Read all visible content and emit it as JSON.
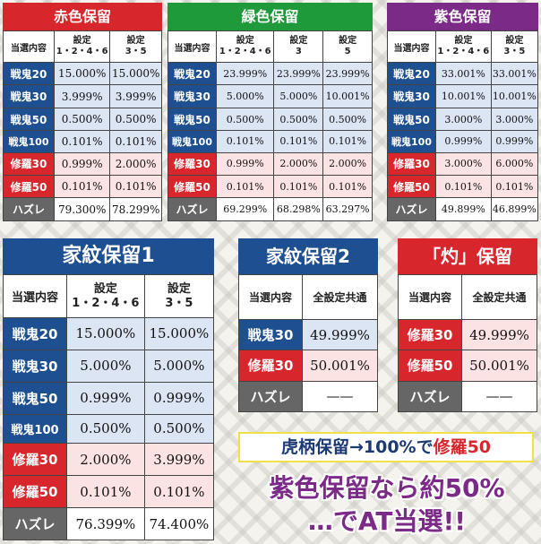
{
  "colors": {
    "red": "#d7272c",
    "green": "#1e9a3b",
    "purple": "#7b2a88",
    "navy": "#1d4f91",
    "gray": "#666666",
    "pinkbg": "#fbe3e3",
    "bluebg": "#dce5f4"
  },
  "red_hold": {
    "title": "赤色保留",
    "headers": [
      "当選内容",
      "設定\n1・2・4・6",
      "設定\n3・5"
    ],
    "rows": [
      {
        "label": "戦鬼20",
        "a": "15.000%",
        "b": "15.000%"
      },
      {
        "label": "戦鬼30",
        "a": "3.999%",
        "b": "3.999%"
      },
      {
        "label": "戦鬼50",
        "a": "0.500%",
        "b": "0.500%"
      },
      {
        "label": "戦鬼100",
        "a": "0.101%",
        "b": "0.101%"
      },
      {
        "label": "修羅30",
        "a": "0.999%",
        "b": "2.000%"
      },
      {
        "label": "修羅50",
        "a": "0.101%",
        "b": "0.101%"
      },
      {
        "label": "ハズレ",
        "a": "79.300%",
        "b": "78.299%"
      }
    ]
  },
  "green_hold": {
    "title": "緑色保留",
    "headers": [
      "当選内容",
      "設定\n1・2・4・6",
      "設定\n3",
      "設定\n5"
    ],
    "rows": [
      {
        "label": "戦鬼20",
        "a": "23.999%",
        "b": "23.999%",
        "c": "23.999%"
      },
      {
        "label": "戦鬼30",
        "a": "5.000%",
        "b": "5.000%",
        "c": "10.001%"
      },
      {
        "label": "戦鬼50",
        "a": "0.500%",
        "b": "0.500%",
        "c": "0.500%"
      },
      {
        "label": "戦鬼100",
        "a": "0.101%",
        "b": "0.101%",
        "c": "0.101%"
      },
      {
        "label": "修羅30",
        "a": "0.999%",
        "b": "2.000%",
        "c": "2.000%"
      },
      {
        "label": "修羅50",
        "a": "0.101%",
        "b": "0.101%",
        "c": "0.101%"
      },
      {
        "label": "ハズレ",
        "a": "69.299%",
        "b": "68.298%",
        "c": "63.297%"
      }
    ]
  },
  "purple_hold": {
    "title": "紫色保留",
    "headers": [
      "当選内容",
      "設定\n1・2・4・6",
      "設定\n3・5"
    ],
    "rows": [
      {
        "label": "戦鬼20",
        "a": "33.001%",
        "b": "33.001%"
      },
      {
        "label": "戦鬼30",
        "a": "10.001%",
        "b": "10.001%"
      },
      {
        "label": "戦鬼50",
        "a": "3.000%",
        "b": "3.000%"
      },
      {
        "label": "戦鬼100",
        "a": "0.999%",
        "b": "0.999%"
      },
      {
        "label": "修羅30",
        "a": "3.000%",
        "b": "6.000%"
      },
      {
        "label": "修羅50",
        "a": "0.101%",
        "b": "0.101%"
      },
      {
        "label": "ハズレ",
        "a": "49.899%",
        "b": "46.899%"
      }
    ]
  },
  "kamon1": {
    "title": "家紋保留1",
    "headers": [
      "当選内容",
      "設定\n1・2・4・6",
      "設定\n3・5"
    ],
    "rows": [
      {
        "label": "戦鬼20",
        "a": "15.000%",
        "b": "15.000%"
      },
      {
        "label": "戦鬼30",
        "a": "5.000%",
        "b": "5.000%"
      },
      {
        "label": "戦鬼50",
        "a": "0.999%",
        "b": "0.999%"
      },
      {
        "label": "戦鬼100",
        "a": "0.500%",
        "b": "0.500%"
      },
      {
        "label": "修羅30",
        "a": "2.000%",
        "b": "3.999%"
      },
      {
        "label": "修羅50",
        "a": "0.101%",
        "b": "0.101%"
      },
      {
        "label": "ハズレ",
        "a": "76.399%",
        "b": "74.400%"
      }
    ]
  },
  "kamon2": {
    "title": "家紋保留2",
    "headers": [
      "当選内容",
      "全設定共通"
    ],
    "rows": [
      {
        "label": "戦鬼30",
        "a": "49.999%"
      },
      {
        "label": "修羅30",
        "a": "50.001%"
      },
      {
        "label": "ハズレ",
        "a": "——"
      }
    ]
  },
  "shaku": {
    "title": "「灼」保留",
    "headers": [
      "当選内容",
      "全設定共通"
    ],
    "rows": [
      {
        "label": "修羅30",
        "a": "49.999%"
      },
      {
        "label": "修羅50",
        "a": "50.001%"
      },
      {
        "label": "ハズレ",
        "a": "——"
      }
    ]
  },
  "tiger_note": {
    "prefix": "虎柄保留→100%で",
    "highlight": "修羅50"
  },
  "slogan": {
    "line1": "紫色保留なら約50%",
    "line2": "…でAT当選!!"
  }
}
